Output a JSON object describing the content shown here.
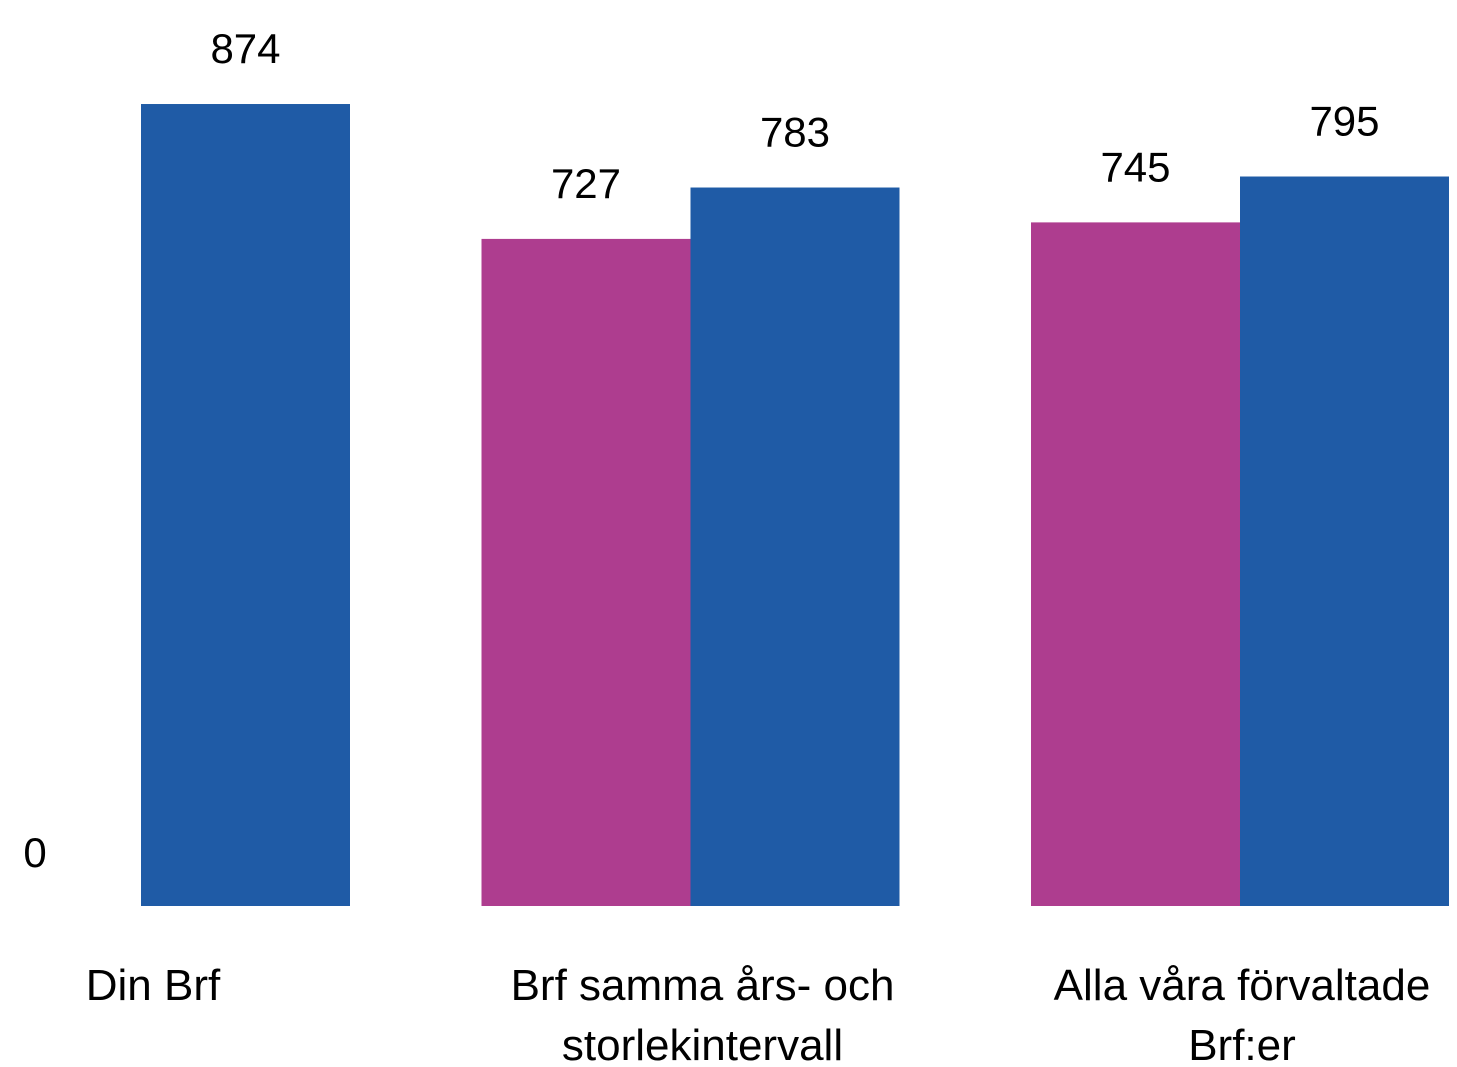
{
  "chart_data": {
    "type": "bar",
    "categories": [
      "Din Brf",
      "Brf samma års- och storlekintervall",
      "Alla våra förvaltade Brf:er"
    ],
    "series": [
      {
        "color": "#ae3d8f",
        "values": [
          null,
          727,
          745
        ]
      },
      {
        "color": "#1f5ba6",
        "values": [
          874,
          783,
          795
        ]
      }
    ],
    "ylim": [
      0,
      950
    ],
    "yticks": [
      0
    ],
    "grid": false
  }
}
